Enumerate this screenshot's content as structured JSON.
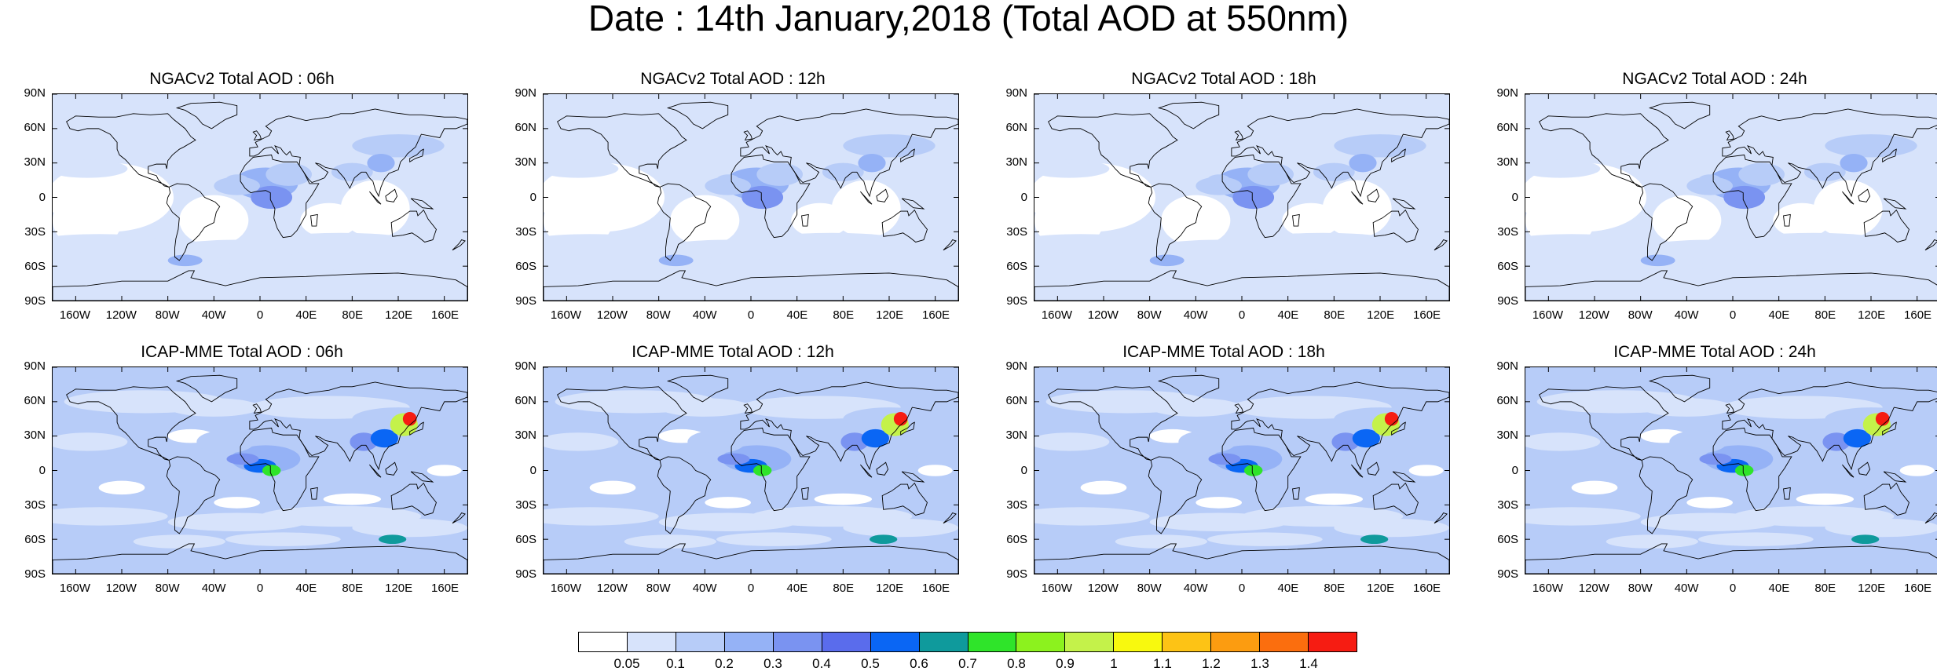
{
  "title": "Date : 14th January,2018 (Total AOD at 550nm)",
  "lat_labels": [
    "90N",
    "60N",
    "30N",
    "0",
    "30S",
    "60S",
    "90S"
  ],
  "lon_labels": [
    "160W",
    "120W",
    "80W",
    "40W",
    "0",
    "40E",
    "80E",
    "120E",
    "160E"
  ],
  "panels": [
    {
      "title": "NGACv2 Total AOD : 06h",
      "model": "NGACv2",
      "hour": "06h"
    },
    {
      "title": "NGACv2 Total AOD : 12h",
      "model": "NGACv2",
      "hour": "12h"
    },
    {
      "title": "NGACv2 Total AOD : 18h",
      "model": "NGACv2",
      "hour": "18h"
    },
    {
      "title": "NGACv2 Total AOD : 24h",
      "model": "NGACv2",
      "hour": "24h"
    },
    {
      "title": "ICAP-MME Total AOD : 06h",
      "model": "ICAP-MME",
      "hour": "06h"
    },
    {
      "title": "ICAP-MME Total AOD : 12h",
      "model": "ICAP-MME",
      "hour": "12h"
    },
    {
      "title": "ICAP-MME Total AOD : 18h",
      "model": "ICAP-MME",
      "hour": "18h"
    },
    {
      "title": "ICAP-MME Total AOD : 24h",
      "model": "ICAP-MME",
      "hour": "24h"
    }
  ],
  "colorbar": {
    "levels": [
      "0.05",
      "0.1",
      "0.2",
      "0.3",
      "0.4",
      "0.5",
      "0.6",
      "0.7",
      "0.8",
      "0.9",
      "1",
      "1.1",
      "1.2",
      "1.3",
      "1.4"
    ],
    "colors": [
      "#ffffff",
      "#d7e3fb",
      "#b7ccf8",
      "#95b2f6",
      "#7a93f1",
      "#5a6cec",
      "#0a66f4",
      "#0f9a9c",
      "#2fe42a",
      "#8cf21e",
      "#c4f24a",
      "#f8f90e",
      "#fdc315",
      "#fc9c10",
      "#fb6e0e",
      "#f61c12"
    ]
  }
}
